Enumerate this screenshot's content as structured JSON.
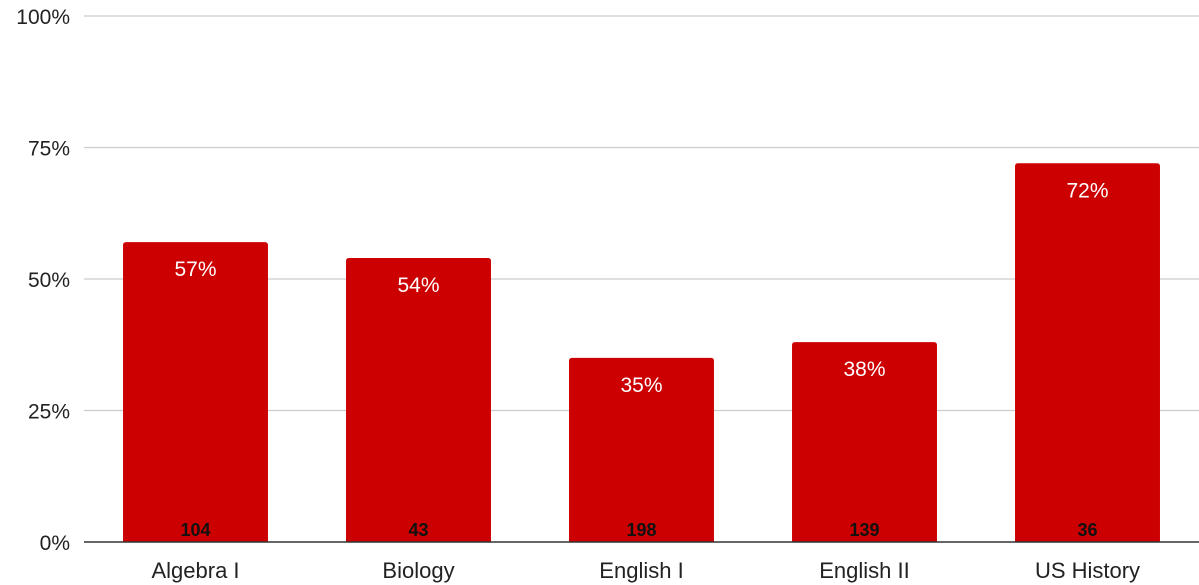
{
  "chart_data": {
    "type": "bar",
    "categories": [
      "Algebra I",
      "Biology",
      "English I",
      "English II",
      "US History"
    ],
    "values": [
      57,
      54,
      35,
      38,
      72
    ],
    "value_labels": [
      "57%",
      "54%",
      "35%",
      "38%",
      "72%"
    ],
    "count_labels": [
      "104",
      "43",
      "198",
      "139",
      "36"
    ],
    "ylim": [
      0,
      100
    ],
    "yticks": [
      0,
      25,
      50,
      75,
      100
    ],
    "ytick_labels": [
      "0%",
      "25%",
      "50%",
      "75%",
      "100%"
    ],
    "grid": true,
    "legend": "none",
    "bar_color": "#cc0000"
  }
}
